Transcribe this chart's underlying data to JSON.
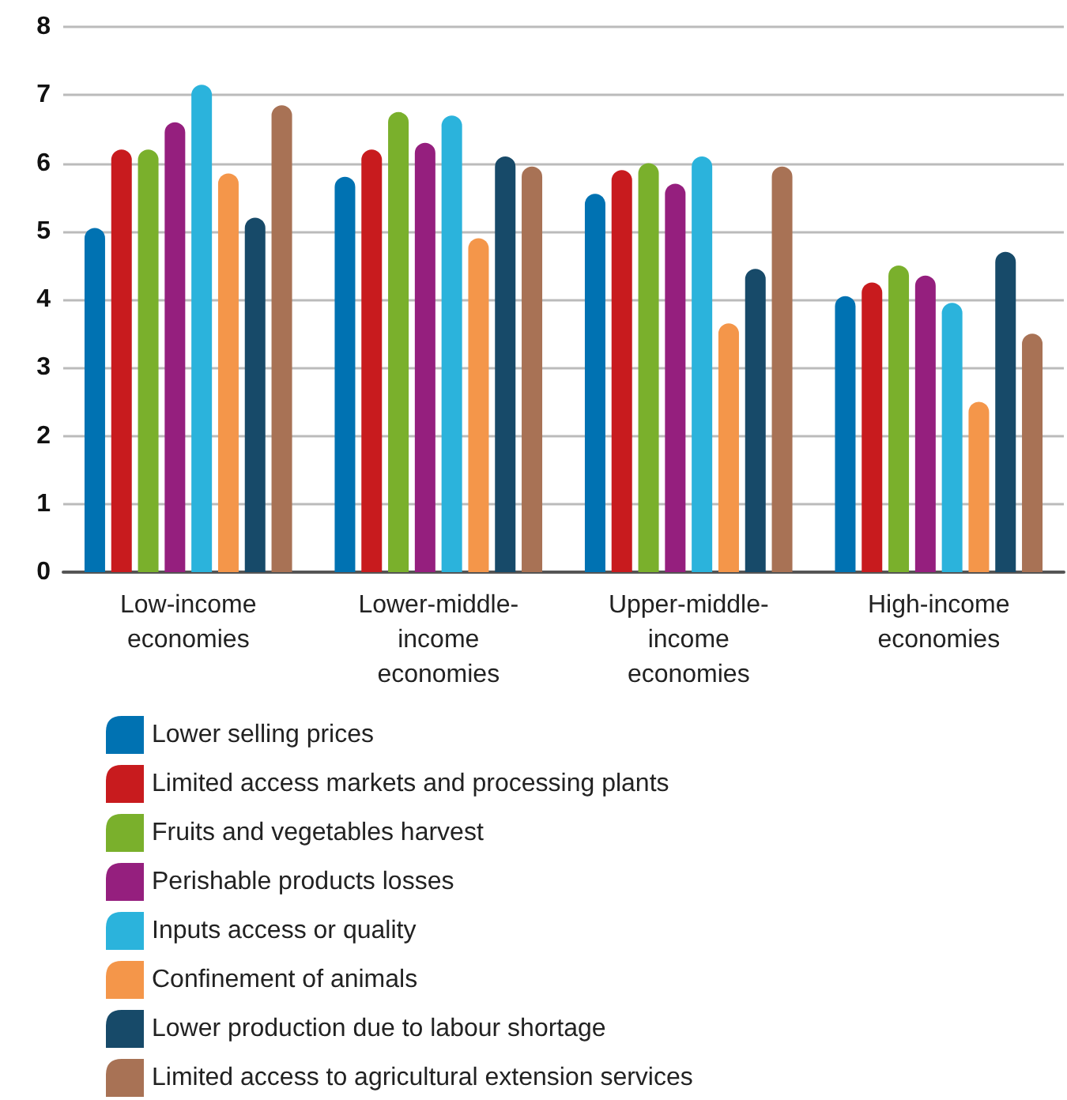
{
  "chart_data": {
    "type": "bar",
    "categories": [
      "Low-income\neconomies",
      "Lower-middle-\nincome\neconomies",
      "Upper-middle-\nincome\neconomies",
      "High-income\neconomies"
    ],
    "series": [
      {
        "name": "Lower selling prices",
        "color": "#0072b2",
        "values": [
          5.05,
          5.8,
          5.55,
          4.05
        ]
      },
      {
        "name": "Limited access markets and processing plants",
        "color": "#c81b1e",
        "values": [
          6.2,
          6.2,
          5.9,
          4.25
        ]
      },
      {
        "name": "Fruits and vegetables harvest",
        "color": "#7ab02c",
        "values": [
          6.2,
          6.75,
          6.0,
          4.5
        ]
      },
      {
        "name": "Perishable products losses",
        "color": "#951f7e",
        "values": [
          6.6,
          6.3,
          5.7,
          4.35
        ]
      },
      {
        "name": "Inputs access or quality",
        "color": "#2bb3dc",
        "values": [
          7.15,
          6.7,
          6.1,
          3.95
        ]
      },
      {
        "name": "Confinement of animals",
        "color": "#f4964a",
        "values": [
          5.85,
          4.9,
          3.65,
          2.5
        ]
      },
      {
        "name": "Lower production due to labour shortage",
        "color": "#174a69",
        "values": [
          5.2,
          6.1,
          4.45,
          4.7
        ]
      },
      {
        "name": "Limited access to agricultural extension services",
        "color": "#a87255",
        "values": [
          6.85,
          5.95,
          5.95,
          3.5
        ]
      }
    ],
    "ylim": [
      0,
      8
    ],
    "yticks": [
      0,
      1,
      2,
      3,
      4,
      5,
      6,
      7,
      8
    ],
    "grid": "y",
    "legend": "bottom left"
  }
}
